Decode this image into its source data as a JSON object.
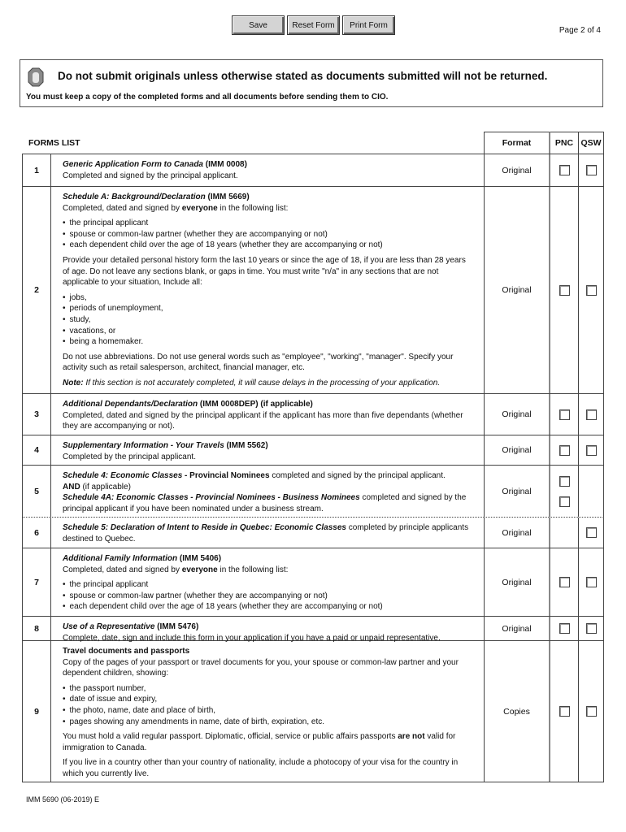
{
  "toolbar": {
    "save": "Save",
    "reset": "Reset Form",
    "print": "Print Form"
  },
  "page_number": "Page 2 of 4",
  "notice": {
    "icon": "stop-hand-icon",
    "heading": "Do not submit originals unless otherwise stated as documents submitted will not be returned.",
    "subtext": "You must keep a copy of the completed forms and all documents before sending them to CIO."
  },
  "table": {
    "headers": {
      "title": "FORMS LIST",
      "format": "Format",
      "pnc": "PNC",
      "qsw": "QSW"
    },
    "rows": [
      {
        "num": "1",
        "format": "Original",
        "pnc": [
          false
        ],
        "qsw": true,
        "blocks": [
          {
            "p": [
              [
                "bi",
                "Generic Application Form to Canada"
              ],
              [
                "b",
                " (IMM 0008)"
              ],
              [
                "br",
                ""
              ],
              [
                "",
                "Completed and signed by the principal applicant."
              ]
            ]
          }
        ]
      },
      {
        "num": "2",
        "format": "Original",
        "pnc": [
          false
        ],
        "qsw": true,
        "blocks": [
          {
            "p": [
              [
                "bi",
                "Schedule A: Background/Declaration"
              ],
              [
                "b",
                " (IMM 5669)"
              ],
              [
                "br",
                ""
              ],
              [
                "",
                "Completed, dated and signed by "
              ],
              [
                "b",
                "everyone"
              ],
              [
                "",
                " in the following list:"
              ]
            ]
          },
          {
            "ul": [
              "the principal applicant",
              "spouse or common-law partner (whether they are accompanying or not)",
              "each dependent child over the age of 18 years (whether they are accompanying or not)"
            ]
          },
          {
            "p": [
              [
                "",
                "Provide your detailed personal history form the last 10 years or since the age of 18, if you are less than 28 years of age. Do not leave any sections blank, or gaps in time. You must write \"n/a\" in any sections that are not applicable to your situation, Include all:"
              ]
            ]
          },
          {
            "ul": [
              "jobs,",
              "periods of unemployment,",
              "study,",
              "vacations, or",
              "being a homemaker."
            ]
          },
          {
            "p": [
              [
                "",
                "Do not use abbreviations. Do not use general words such as \"employee\", \"working\", \"manager\". Specify your activity such as retail salesperson, architect, financial manager, etc."
              ]
            ]
          },
          {
            "p": [
              [
                "bi",
                "Note:"
              ],
              [
                "i",
                " If this section is not accurately completed, it will cause delays in the processing of your application."
              ]
            ]
          }
        ]
      },
      {
        "num": "3",
        "format": "Original",
        "pnc": [
          false
        ],
        "qsw": true,
        "blocks": [
          {
            "p": [
              [
                "bi",
                "Additional Dependants/Declaration"
              ],
              [
                "b",
                " (IMM 0008DEP)  (if applicable)"
              ],
              [
                "br",
                ""
              ],
              [
                "",
                "Completed, dated and signed by the principal applicant if the applicant has more than five dependants (whether they are accompanying or not)."
              ]
            ]
          }
        ]
      },
      {
        "num": "4",
        "format": "Original",
        "pnc": [
          false
        ],
        "qsw": true,
        "blocks": [
          {
            "p": [
              [
                "bi",
                "Supplementary Information - Your Travels"
              ],
              [
                "b",
                " (IMM 5562)"
              ],
              [
                "br",
                ""
              ],
              [
                "",
                "Completed by the principal applicant."
              ]
            ]
          }
        ]
      },
      {
        "num": "5",
        "format": "Original",
        "pnc": [
          false,
          false
        ],
        "qsw": false,
        "dotted": true,
        "blocks": [
          {
            "p": [
              [
                "bi",
                "Schedule 4: Economic Classes"
              ],
              [
                "b",
                " - Provincial Nominees"
              ],
              [
                "",
                " completed and signed by the principal applicant."
              ],
              [
                "br",
                ""
              ],
              [
                "b",
                "AND"
              ],
              [
                "",
                " (if applicable)"
              ],
              [
                "br",
                ""
              ],
              [
                "bi",
                "Schedule 4A: Economic Classes - Provincial Nominees - Business Nominees"
              ],
              [
                "",
                " completed and signed by the principal applicant if you have been nominated under a business stream."
              ]
            ]
          }
        ]
      },
      {
        "num": "6",
        "format": "Original",
        "pnc": [],
        "qsw": true,
        "blocks": [
          {
            "p": [
              [
                "bi",
                "Schedule 5: Declaration of Intent to Reside in Quebec: Economic Classes"
              ],
              [
                "",
                " completed by principle applicants destined to Quebec."
              ]
            ]
          }
        ]
      },
      {
        "num": "7",
        "format": "Original",
        "pnc": [
          false
        ],
        "qsw": true,
        "blocks": [
          {
            "p": [
              [
                "bi",
                "Additional Family Information"
              ],
              [
                "b",
                " (IMM 5406)"
              ],
              [
                "br",
                ""
              ],
              [
                "",
                "Completed, dated and signed by "
              ],
              [
                "b",
                "everyone"
              ],
              [
                "",
                " in the following list:"
              ]
            ]
          },
          {
            "ul": [
              "the principal applicant",
              "spouse or common-law partner (whether they are accompanying or not)",
              "each dependent child over the age of 18 years (whether they are accompanying or not)"
            ]
          }
        ]
      },
      {
        "num": "8",
        "format": "Original",
        "pnc": [
          false
        ],
        "qsw": true,
        "blocks": [
          {
            "p": [
              [
                "bi",
                "Use of a Representative"
              ],
              [
                "b",
                " (IMM 5476)"
              ],
              [
                "br",
                ""
              ],
              [
                "",
                "Complete, date, sign and include this form in your application if you have a paid or unpaid representative."
              ]
            ]
          }
        ]
      },
      {
        "num": "9",
        "format": "Copies",
        "pnc": [
          false
        ],
        "qsw": true,
        "blocks": [
          {
            "p": [
              [
                "b",
                "Travel documents and passports"
              ],
              [
                "br",
                ""
              ],
              [
                "",
                "Copy of the pages of your passport or travel documents for you, your spouse or common-law partner and your dependent children, showing:"
              ]
            ]
          },
          {
            "ul": [
              "the passport number,",
              "date of issue and expiry,",
              "the photo, name, date and place of birth,",
              "pages showing any amendments in name, date of birth, expiration, etc."
            ]
          },
          {
            "p": [
              [
                "",
                "You must hold a valid regular passport. Diplomatic, official, service or public affairs passports "
              ],
              [
                "b",
                "are not"
              ],
              [
                "",
                " valid for immigration to Canada."
              ]
            ]
          },
          {
            "p": [
              [
                "",
                "If you live in a country other than your country of nationality, include a photocopy of your visa for the country in which you currently live."
              ]
            ]
          }
        ]
      }
    ]
  },
  "footer": "IMM 5690 (06-2019) E"
}
